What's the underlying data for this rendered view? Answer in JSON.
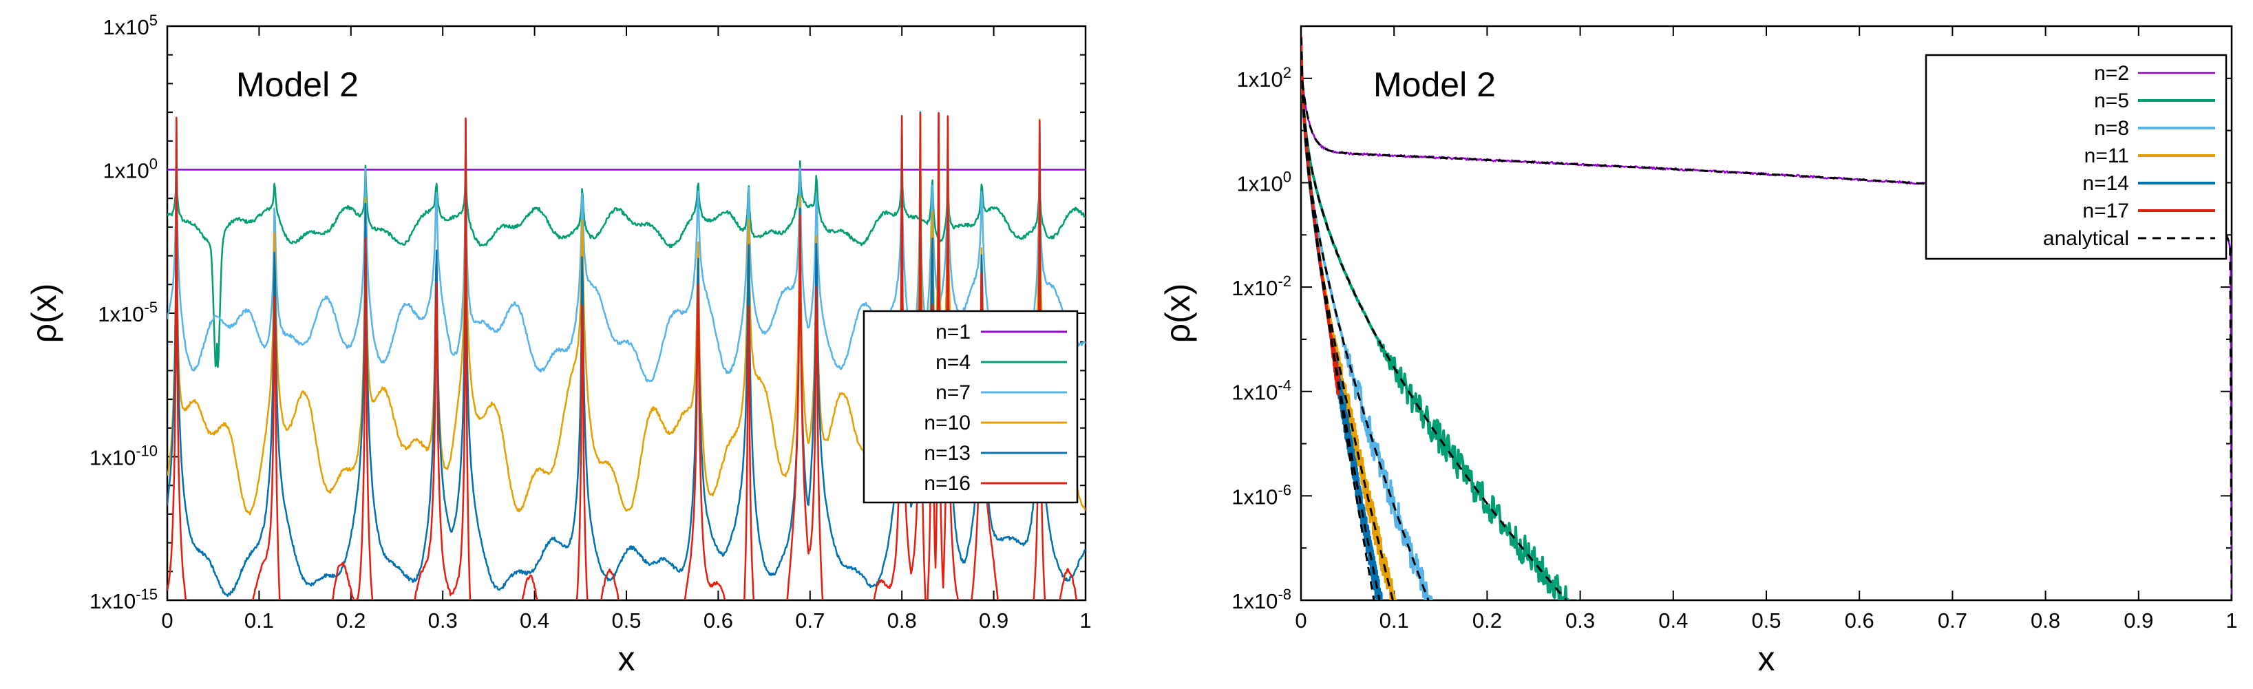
{
  "chart_data": [
    {
      "type": "line",
      "title": "",
      "annotation": "Model 2",
      "xlabel": "x",
      "ylabel": "ρ(x)",
      "xlim": [
        0,
        1
      ],
      "ylim_log10": [
        -15,
        5
      ],
      "yscale": "log",
      "xticks": [
        0,
        0.1,
        0.2,
        0.3,
        0.4,
        0.5,
        0.6,
        0.7,
        0.8,
        0.9,
        1
      ],
      "xtick_labels": [
        "0",
        "0.1",
        "0.2",
        "0.3",
        "0.4",
        "0.5",
        "0.6",
        "0.7",
        "0.8",
        "0.9",
        "1"
      ],
      "yticks_log10": [
        5,
        0,
        -5,
        -10,
        -15
      ],
      "ytick_mantissa": [
        "1x10",
        "1x10",
        "1x10",
        "1x10",
        "1x10"
      ],
      "ytick_exponents": [
        "5",
        "0",
        "-5",
        "-10",
        "-15"
      ],
      "legend_position": "center-right",
      "series": [
        {
          "name": "n=1",
          "color": "#9400d3",
          "width": 2.5,
          "base_log10": 0,
          "amp": 0,
          "depth": 0,
          "peaks": []
        },
        {
          "name": "n=4",
          "color": "#009e73",
          "width": 2.5,
          "base_log10": -2,
          "amp": 0.45,
          "depth": 2.8,
          "peaks": [
            0.01,
            0.054,
            0.117,
            0.216,
            0.293,
            0.325,
            0.452,
            0.578,
            0.633,
            0.689,
            0.707,
            0.8,
            0.833,
            0.85,
            0.887,
            0.95
          ],
          "minima": [
            0.054
          ]
        },
        {
          "name": "n=7",
          "color": "#56b4e9",
          "width": 2.5,
          "base_log10": -6,
          "amp": 1.0,
          "depth": 2.0,
          "peaks": [
            0.01,
            0.117,
            0.216,
            0.293,
            0.325,
            0.452,
            0.578,
            0.633,
            0.689,
            0.707,
            0.8,
            0.82,
            0.833,
            0.85,
            0.887,
            0.95
          ]
        },
        {
          "name": "n=10",
          "color": "#e69f00",
          "width": 2.5,
          "base_log10": -10,
          "amp": 1.5,
          "depth": 2.5,
          "peaks": [
            0.01,
            0.117,
            0.216,
            0.293,
            0.325,
            0.452,
            0.578,
            0.633,
            0.689,
            0.707,
            0.8,
            0.82,
            0.833,
            0.84,
            0.85,
            0.887,
            0.95
          ]
        },
        {
          "name": "n=13",
          "color": "#0072b2",
          "width": 2.5,
          "base_log10": -14,
          "amp": 0.6,
          "depth": 2.5,
          "peaks": [
            0.01,
            0.117,
            0.216,
            0.293,
            0.325,
            0.452,
            0.578,
            0.633,
            0.689,
            0.707,
            0.8,
            0.82,
            0.833,
            0.84,
            0.85,
            0.887,
            0.95
          ]
        },
        {
          "name": "n=16",
          "color": "#e51e10",
          "width": 2.5,
          "base_log10": -17,
          "amp": 2.0,
          "depth": 3.0,
          "peaks": [
            0.01,
            0.117,
            0.216,
            0.293,
            0.325,
            0.452,
            0.578,
            0.633,
            0.689,
            0.707,
            0.8,
            0.82,
            0.833,
            0.84,
            0.85,
            0.887,
            0.95
          ]
        }
      ]
    },
    {
      "type": "line",
      "title": "",
      "annotation": "Model 2",
      "xlabel": "x",
      "ylabel": "ρ(x)",
      "xlim": [
        0,
        1
      ],
      "ylim_log10": [
        -8,
        3
      ],
      "yscale": "log",
      "xticks": [
        0,
        0.1,
        0.2,
        0.3,
        0.4,
        0.5,
        0.6,
        0.7,
        0.8,
        0.9,
        1
      ],
      "xtick_labels": [
        "0",
        "0.1",
        "0.2",
        "0.3",
        "0.4",
        "0.5",
        "0.6",
        "0.7",
        "0.8",
        "0.9",
        "1"
      ],
      "yticks_log10": [
        2,
        0,
        -2,
        -4,
        -6,
        -8
      ],
      "ytick_mantissa": [
        "1x10",
        "1x10",
        "1x10",
        "1x10",
        "1x10",
        "1x10"
      ],
      "ytick_exponents": [
        "2",
        "0",
        "-2",
        "-4",
        "-6",
        "-8"
      ],
      "legend_position": "top-right",
      "series": [
        {
          "name": "n=2",
          "color": "#9400d3",
          "width": 2.5,
          "n": 2,
          "cutoff_x": 1.0
        },
        {
          "name": "n=5",
          "color": "#009e73",
          "width": 4,
          "n": 5,
          "cutoff_x": 0.895
        },
        {
          "name": "n=8",
          "color": "#56b4e9",
          "width": 4,
          "n": 8,
          "cutoff_x": 0.62
        },
        {
          "name": "n=11",
          "color": "#e69f00",
          "width": 4,
          "n": 11,
          "cutoff_x": 0.255
        },
        {
          "name": "n=14",
          "color": "#0072b2",
          "width": 4,
          "n": 14,
          "cutoff_x": 0.095
        },
        {
          "name": "n=17",
          "color": "#e51e10",
          "width": 4,
          "n": 17,
          "cutoff_x": 0.04
        },
        {
          "name": "analytical",
          "color": "#000000",
          "width": 3,
          "dashed": true
        }
      ]
    }
  ]
}
